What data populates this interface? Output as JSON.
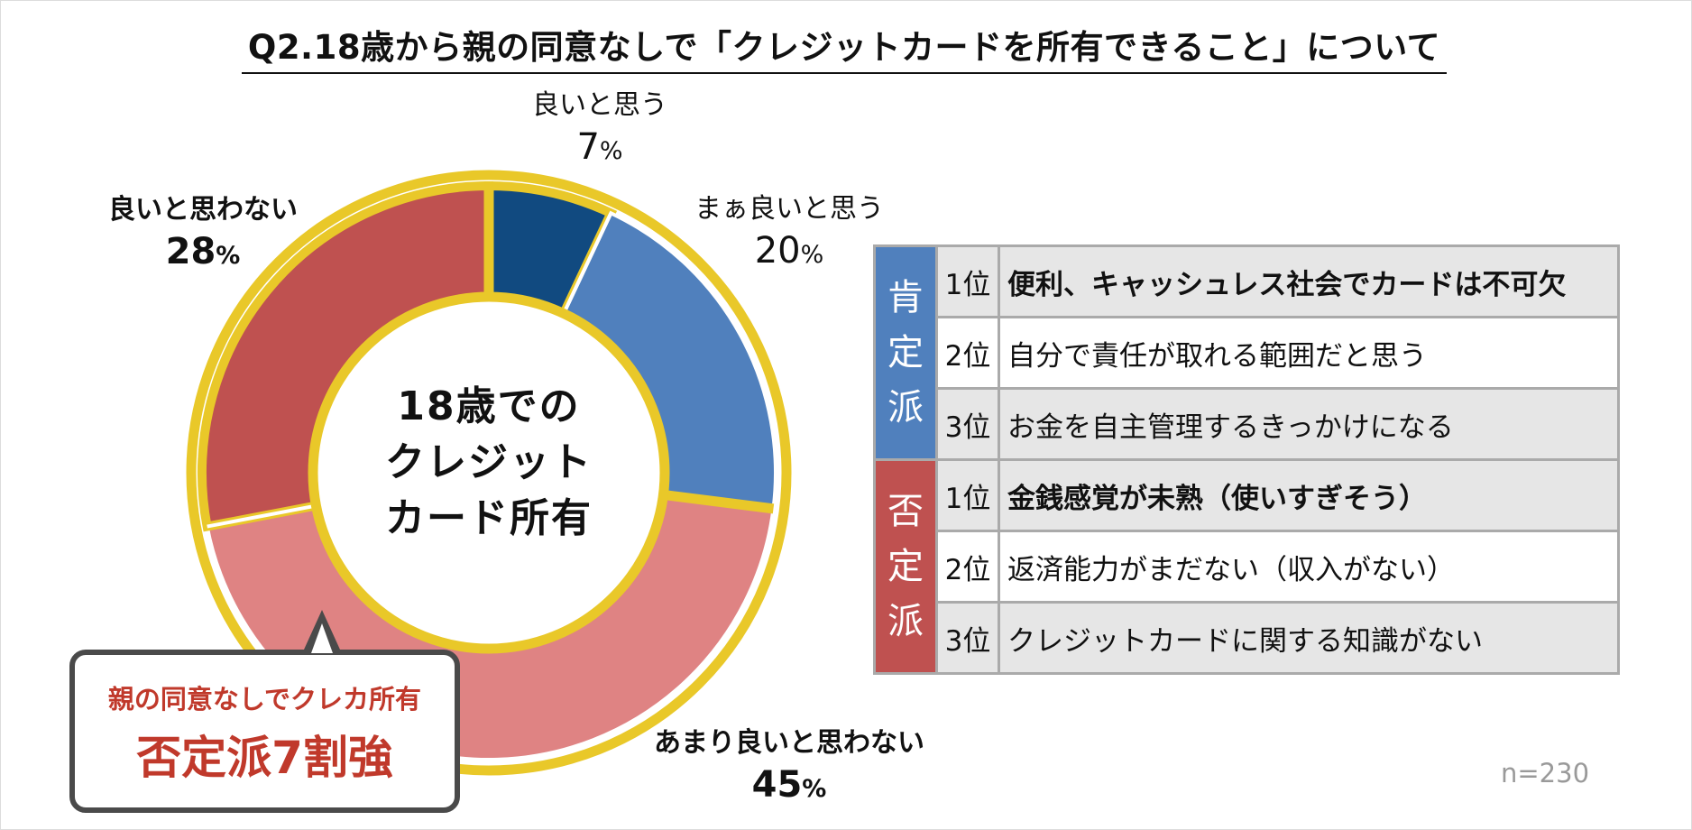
{
  "title": "Q2.18歳から親の同意なしで「クレジットカードを所有できること」について",
  "center_label_lines": [
    "18歳での",
    "クレジット",
    "カード所有"
  ],
  "percent_suffix": "%",
  "chart_data": {
    "type": "pie",
    "variant": "donut",
    "title": "Q2.18歳から親の同意なしで「クレジットカードを所有できること」について",
    "center_text": "18歳での クレジット カード所有",
    "categories": [
      "良いと思う",
      "まぁ良いと思う",
      "あまり良いと思わない",
      "良いと思わない"
    ],
    "values": [
      7,
      20,
      45,
      28
    ],
    "unit": "%",
    "colors": [
      "#114a80",
      "#5080bd",
      "#df8383",
      "#bf5150"
    ],
    "ring_color": "#e9c829",
    "sample_size": "n=230"
  },
  "callout": {
    "line1": "親の同意なしでクレカ所有",
    "line2": "否定派7割強"
  },
  "reasons": {
    "groups": [
      {
        "label": "肯定派",
        "color": "#5080bd",
        "rows": [
          {
            "rank": "1位",
            "text": "便利、キャッシュレス社会でカードは不可欠"
          },
          {
            "rank": "2位",
            "text": "自分で責任が取れる範囲だと思う"
          },
          {
            "rank": "3位",
            "text": "お金を自主管理するきっかけになる"
          }
        ]
      },
      {
        "label": "否定派",
        "color": "#bf5150",
        "rows": [
          {
            "rank": "1位",
            "text": "金銭感覚が未熟（使いすぎそう）"
          },
          {
            "rank": "2位",
            "text": "返済能力がまだない（収入がない）"
          },
          {
            "rank": "3位",
            "text": "クレジットカードに関する知識がない"
          }
        ]
      }
    ]
  },
  "sample_size": "n=230"
}
